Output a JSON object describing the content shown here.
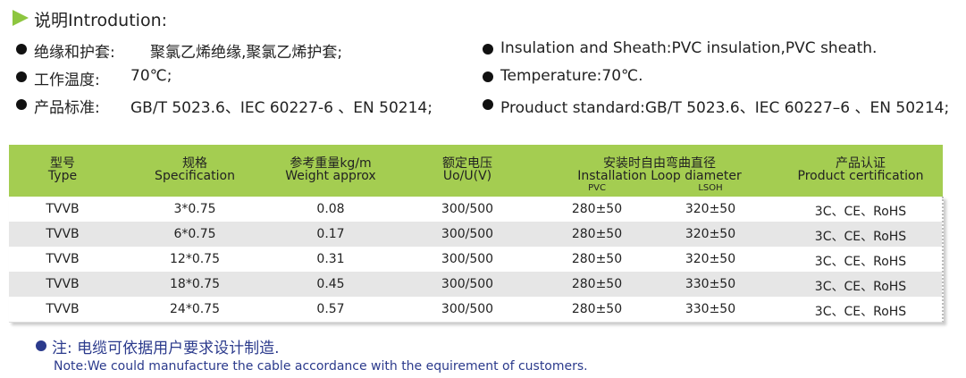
{
  "header": {
    "title": "说明Introdution:"
  },
  "specs_zh": [
    {
      "label": "绝缘和护套:",
      "value": "聚氯乙烯绝缘,聚氯乙烯护套;"
    },
    {
      "label": "工作温度:",
      "value": "70℃;"
    },
    {
      "label": "产品标准:",
      "value": "GB/T 5023.6、IEC 60227-6 、EN 50214;"
    }
  ],
  "specs_en": [
    "Insulation and Sheath:PVC insulation,PVC sheath.",
    "Temperature:70℃.",
    "Prouduct standard:GB/T 5023.6、IEC 60227–6 、EN 50214;"
  ],
  "table": {
    "columns": [
      {
        "zh": "型号",
        "en": "Type"
      },
      {
        "zh": "规格",
        "en": "Specification"
      },
      {
        "zh": "参考重量kg/m",
        "en": "Weight approx"
      },
      {
        "zh": "额定电压",
        "en": "Uo/U(V)"
      },
      {
        "zh": "安装时自由弯曲直径",
        "en": "Installation Loop diameter",
        "sub": [
          "PVC",
          "LSOH"
        ]
      },
      {
        "zh": "产品认证",
        "en": "Product certification"
      }
    ],
    "rows": [
      [
        "TVVB",
        "3*0.75",
        "0.08",
        "300/500",
        "280±50",
        "320±50",
        "3C、CE、RoHS"
      ],
      [
        "TVVB",
        "6*0.75",
        "0.17",
        "300/500",
        "280±50",
        "320±50",
        "3C、CE、RoHS"
      ],
      [
        "TVVB",
        "12*0.75",
        "0.31",
        "300/500",
        "280±50",
        "320±50",
        "3C、CE、RoHS"
      ],
      [
        "TVVB",
        "18*0.75",
        "0.45",
        "300/500",
        "280±50",
        "330±50",
        "3C、CE、RoHS"
      ],
      [
        "TVVB",
        "24*0.75",
        "0.57",
        "300/500",
        "280±50",
        "330±50",
        "3C、CE、RoHS"
      ]
    ]
  },
  "note": {
    "zh": "注:  电缆可依据用户要求设计制造.",
    "en": "Note:We could manufacture the cable accordance with the equirement of customers."
  }
}
